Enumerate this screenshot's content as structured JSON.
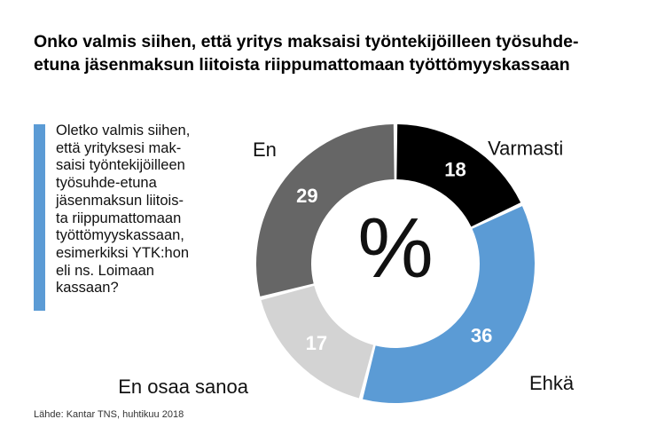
{
  "title_lines": [
    "Onko valmis siihen, että yritys maksaisi työntekijöilleen työsuhde-",
    "etuna jäsenmaksun liitoista riippumattomaan työttömyyskassaan"
  ],
  "question_lines": [
    "Oletko valmis siihen,",
    "että yrityksesi mak-",
    "saisi työntekijöilleen",
    "työsuhde-etuna",
    "jäsenmaksun liitois-",
    "ta riippumattomaan",
    "työttömyyskassaan,",
    "esimerkiksi YTK:hon",
    "eli ns. Loimaan",
    "kassaan?"
  ],
  "source": "Lähde: Kantar TNS, huhtikuu 2018",
  "colors": {
    "accent": "#5b9bd5"
  },
  "chart_data": {
    "type": "pie",
    "center_label": "%",
    "categories": [
      "Varmasti",
      "Ehkä",
      "En osaa sanoa",
      "En"
    ],
    "values": [
      18,
      36,
      17,
      29
    ],
    "colors": [
      "#000000",
      "#5b9bd5",
      "#d3d3d3",
      "#666666"
    ],
    "label_colors": [
      "#ffffff",
      "#ffffff",
      "#ffffff",
      "#ffffff"
    ]
  }
}
